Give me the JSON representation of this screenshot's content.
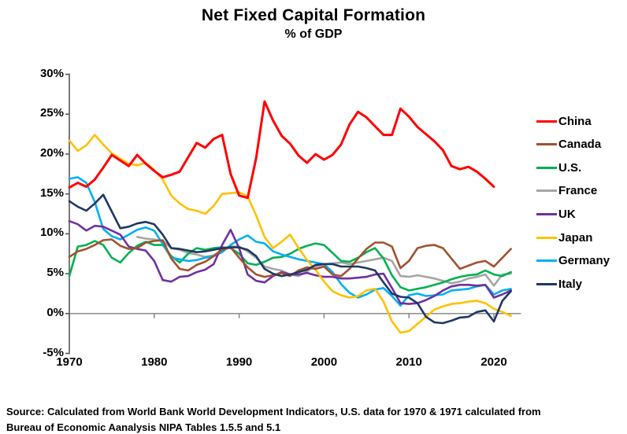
{
  "title": "Net Fixed Capital Formation",
  "subtitle": "% of GDP",
  "source_line1": "Source:  Calculated from World Bank World Development Indicators, U.S. data for 1970 & 1971 calculated from",
  "source_line2": "Bureau of Economic Aanalysis NIPA Tables 1.5.5 and 5.1",
  "chart_data": {
    "type": "line",
    "xlabel": "",
    "ylabel": "% of GDP",
    "xlim": [
      1970,
      2023
    ],
    "ylim": [
      -5,
      30
    ],
    "x_ticks": [
      1970,
      1980,
      1990,
      2000,
      2010,
      2020
    ],
    "y_ticks": [
      {
        "label": "30%",
        "value": 30
      },
      {
        "label": "25%",
        "value": 25
      },
      {
        "label": "20%",
        "value": 20
      },
      {
        "label": "15%",
        "value": 15
      },
      {
        "label": "10%",
        "value": 10
      },
      {
        "label": "5%",
        "value": 5
      },
      {
        "label": "0%",
        "value": 0
      },
      {
        "label": "-5%",
        "value": -5
      }
    ],
    "grid": false,
    "zero_line_color": "#808080",
    "axis_color": "#595959",
    "legend_position": "right",
    "draw_order": [
      "France",
      "U.S.",
      "Germany",
      "UK",
      "Japan",
      "Canada",
      "Italy",
      "China"
    ],
    "series": [
      {
        "name": "China",
        "color": "#FF0000",
        "width": 3,
        "start_year": 1970,
        "values": [
          15.8,
          16.4,
          15.9,
          16.8,
          18.3,
          19.9,
          19.2,
          18.5,
          19.9,
          18.8,
          17.9,
          17.1,
          17.4,
          17.8,
          19.6,
          21.4,
          20.8,
          21.9,
          22.4,
          17.5,
          14.8,
          14.5,
          19.5,
          26.6,
          24.2,
          22.3,
          21.3,
          19.8,
          18.9,
          20.0,
          19.3,
          19.9,
          21.2,
          23.7,
          25.3,
          24.6,
          23.5,
          22.4,
          22.4,
          25.7,
          24.7,
          23.4,
          22.5,
          21.6,
          20.5,
          18.5,
          18.1,
          18.4,
          17.8,
          16.9,
          15.9
        ]
      },
      {
        "name": "Canada",
        "color": "#A0522D",
        "width": 2.6,
        "start_year": 1970,
        "values": [
          7.1,
          7.8,
          8.1,
          8.6,
          9.2,
          9.3,
          8.5,
          8.1,
          8.2,
          8.9,
          9.1,
          9.2,
          6.9,
          5.6,
          5.4,
          6.1,
          6.5,
          7.2,
          8.0,
          8.3,
          7.0,
          5.8,
          4.9,
          4.6,
          4.8,
          5.1,
          4.7,
          5.4,
          5.8,
          5.6,
          5.9,
          4.9,
          4.7,
          5.6,
          6.9,
          8.1,
          8.9,
          8.9,
          8.4,
          5.7,
          6.6,
          8.2,
          8.5,
          8.6,
          8.2,
          6.9,
          5.6,
          6.0,
          6.4,
          6.6,
          5.9,
          7.0,
          8.1
        ]
      },
      {
        "name": "U.S.",
        "color": "#00B050",
        "width": 2.6,
        "start_year": 1970,
        "values": [
          4.7,
          8.4,
          8.6,
          9.1,
          8.6,
          7.0,
          6.4,
          7.6,
          8.5,
          9.0,
          8.6,
          8.6,
          7.2,
          6.4,
          7.5,
          8.2,
          8.0,
          8.2,
          8.3,
          8.2,
          7.5,
          6.3,
          6.1,
          6.5,
          7.0,
          7.1,
          7.5,
          8.1,
          8.5,
          8.8,
          8.6,
          7.6,
          6.6,
          6.5,
          7.0,
          7.7,
          8.2,
          6.9,
          4.8,
          3.3,
          2.9,
          3.1,
          3.3,
          3.6,
          3.9,
          4.3,
          4.6,
          4.8,
          4.9,
          5.4,
          4.9,
          4.7,
          5.2
        ]
      },
      {
        "name": "France",
        "color": "#A5A5A5",
        "width": 2.6,
        "start_year": 1978,
        "values": [
          9.6,
          9.4,
          9.3,
          9.1,
          8.2,
          8.0,
          7.6,
          7.4,
          7.1,
          7.3,
          8.0,
          8.4,
          8.4,
          7.8,
          7.0,
          5.9,
          5.6,
          5.4,
          4.9,
          4.7,
          5.3,
          5.9,
          6.2,
          6.3,
          6.4,
          6.2,
          6.4,
          6.6,
          6.8,
          7.0,
          6.6,
          4.7,
          4.6,
          4.8,
          4.6,
          4.4,
          4.1,
          3.8,
          4.0,
          4.4,
          4.6,
          4.9,
          3.5,
          4.9,
          5.0
        ]
      },
      {
        "name": "UK",
        "color": "#7030A0",
        "width": 2.6,
        "start_year": 1970,
        "values": [
          11.6,
          11.2,
          10.4,
          11.0,
          10.9,
          10.4,
          9.9,
          8.4,
          8.1,
          7.9,
          6.6,
          4.2,
          4.0,
          4.6,
          4.7,
          5.2,
          5.5,
          6.2,
          8.6,
          10.5,
          8.2,
          4.9,
          4.1,
          3.9,
          4.7,
          5.2,
          4.9,
          4.9,
          5.1,
          4.8,
          4.6,
          4.6,
          4.4,
          4.4,
          4.5,
          4.6,
          4.9,
          5.0,
          3.2,
          1.3,
          1.2,
          1.3,
          1.7,
          2.2,
          2.9,
          3.4,
          3.6,
          3.6,
          3.5,
          3.6,
          2.0,
          2.4,
          2.9
        ]
      },
      {
        "name": "Japan",
        "color": "#FFC000",
        "width": 2.6,
        "start_year": 1970,
        "values": [
          21.7,
          20.4,
          21.1,
          22.4,
          21.2,
          20.1,
          19.4,
          18.8,
          18.6,
          18.9,
          18.0,
          16.8,
          14.8,
          13.8,
          13.1,
          12.9,
          12.5,
          13.5,
          15.0,
          15.1,
          15.2,
          14.7,
          12.3,
          9.6,
          8.2,
          9.0,
          9.9,
          8.2,
          6.7,
          5.5,
          4.0,
          2.8,
          2.3,
          2.0,
          2.2,
          2.9,
          3.1,
          1.5,
          -1.0,
          -2.4,
          -2.2,
          -1.3,
          -0.4,
          0.5,
          0.9,
          1.2,
          1.3,
          1.5,
          1.6,
          1.3,
          0.6,
          0.2,
          -0.3
        ]
      },
      {
        "name": "Germany",
        "color": "#00B0F0",
        "width": 2.6,
        "start_year": 1970,
        "values": [
          16.9,
          17.1,
          16.4,
          14.0,
          10.6,
          9.7,
          9.3,
          9.9,
          10.5,
          10.8,
          10.4,
          8.7,
          7.0,
          6.8,
          6.6,
          6.7,
          7.0,
          7.2,
          7.7,
          8.6,
          9.3,
          9.8,
          9.0,
          8.8,
          7.8,
          7.4,
          7.1,
          6.8,
          6.6,
          6.4,
          6.2,
          5.2,
          3.7,
          2.6,
          2.0,
          2.4,
          3.0,
          3.2,
          2.2,
          1.0,
          2.3,
          2.5,
          2.2,
          2.3,
          2.4,
          2.9,
          3.0,
          3.1,
          3.4,
          3.6,
          2.4,
          2.9,
          3.1
        ]
      },
      {
        "name": "Italy",
        "color": "#1F3864",
        "width": 2.6,
        "start_year": 1970,
        "values": [
          14.1,
          13.4,
          12.9,
          13.8,
          14.9,
          12.8,
          10.7,
          10.9,
          11.3,
          11.5,
          11.2,
          9.9,
          8.2,
          8.1,
          7.9,
          7.7,
          7.8,
          8.0,
          8.2,
          8.3,
          8.3,
          8.0,
          7.2,
          5.6,
          5.0,
          4.7,
          4.9,
          5.2,
          5.5,
          6.1,
          6.2,
          6.2,
          5.9,
          5.9,
          5.9,
          5.7,
          5.4,
          3.9,
          2.5,
          2.1,
          2.0,
          1.3,
          -0.4,
          -1.1,
          -1.2,
          -0.9,
          -0.5,
          -0.4,
          0.2,
          0.4,
          -1.0,
          1.6,
          2.8
        ]
      }
    ]
  }
}
